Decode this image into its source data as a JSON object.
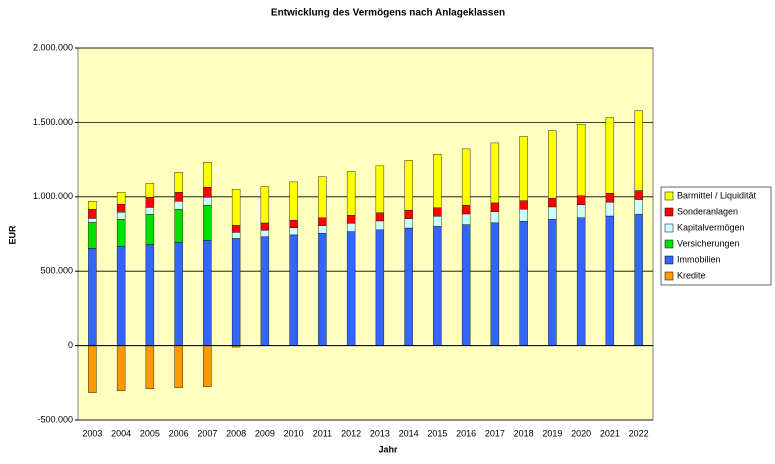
{
  "chart_data": {
    "type": "stacked_bar",
    "title": "Entwicklung des Vermögens nach Anlageklassen",
    "x_label": "Jahr",
    "y_label": "EUR",
    "categories": [
      "2003",
      "2004",
      "2005",
      "2006",
      "2007",
      "2008",
      "2009",
      "2010",
      "2011",
      "2012",
      "2013",
      "2014",
      "2015",
      "2016",
      "2017",
      "2018",
      "2019",
      "2020",
      "2021",
      "2022"
    ],
    "series": [
      {
        "name": "Kredite",
        "color": "#ff9900",
        "values": [
          -316000,
          -303000,
          -290000,
          -283000,
          -276000,
          -10000,
          0,
          0,
          0,
          0,
          0,
          0,
          0,
          0,
          0,
          0,
          0,
          0,
          0,
          0
        ]
      },
      {
        "name": "Immobilien",
        "color": "#3366ff",
        "values": [
          653000,
          667000,
          680000,
          694000,
          707000,
          720000,
          732000,
          744000,
          755000,
          766000,
          778000,
          790000,
          801000,
          813000,
          825000,
          836000,
          848000,
          859000,
          871000,
          882000
        ]
      },
      {
        "name": "Versicherungen",
        "color": "#00e000",
        "values": [
          175000,
          181000,
          202000,
          222000,
          236000,
          0,
          0,
          0,
          0,
          0,
          0,
          0,
          0,
          0,
          0,
          0,
          0,
          0,
          0,
          0
        ]
      },
      {
        "name": "Kapitalvermögen",
        "color": "#ccffff",
        "values": [
          27000,
          48000,
          47000,
          54000,
          54000,
          41000,
          44000,
          48000,
          52000,
          56000,
          60000,
          64000,
          68000,
          72000,
          76000,
          80000,
          84000,
          88000,
          93000,
          100000
        ]
      },
      {
        "name": "Sonderanlagen",
        "color": "#ff0000",
        "values": [
          61000,
          54000,
          68000,
          60000,
          67000,
          47000,
          48000,
          50000,
          52000,
          54000,
          55000,
          56000,
          57000,
          58000,
          58000,
          58000,
          59000,
          60000,
          60000,
          60000
        ]
      },
      {
        "name": "Barmittel / Liquidität",
        "color": "#ffff00",
        "values": [
          54000,
          80000,
          94000,
          135000,
          168000,
          242000,
          244000,
          258000,
          276000,
          294000,
          315000,
          335000,
          359000,
          379000,
          403000,
          431000,
          454000,
          481000,
          509000,
          538000
        ]
      }
    ],
    "ylim": [
      -500000,
      2000000
    ],
    "yticks": [
      {
        "value": -500000,
        "label": "-500.000"
      },
      0,
      {
        "value": 500000,
        "label": "500.000"
      },
      {
        "value": 1000000,
        "label": "1.000.000"
      },
      {
        "value": 1500000,
        "label": "1.500.000"
      },
      {
        "value": 2000000,
        "label": "2.000.000"
      }
    ],
    "grid": true,
    "legend": "right",
    "background": "#ffffc0"
  }
}
